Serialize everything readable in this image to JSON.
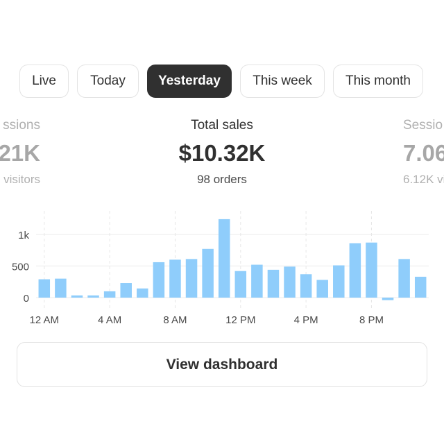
{
  "tabs": [
    {
      "label": "Live",
      "active": false
    },
    {
      "label": "Today",
      "active": false
    },
    {
      "label": "Yesterday",
      "active": true
    },
    {
      "label": "This week",
      "active": false
    },
    {
      "label": "This month",
      "active": false
    }
  ],
  "metrics": {
    "left": {
      "label": "ssions",
      "value": "21K",
      "sub": "visitors"
    },
    "center": {
      "label": "Total sales",
      "value": "$10.32K",
      "sub": "98 orders"
    },
    "right": {
      "label": "Sessio",
      "value": "7.06",
      "sub": "6.12K vi"
    }
  },
  "colors": {
    "bar": "#8fcdfb",
    "bar_negative": "#8fcdfb",
    "active_tab": "#303030"
  },
  "chart_data": {
    "type": "bar",
    "categories": [
      "12 AM",
      "1 AM",
      "2 AM",
      "3 AM",
      "4 AM",
      "5 AM",
      "6 AM",
      "7 AM",
      "8 AM",
      "9 AM",
      "10 AM",
      "11 AM",
      "12 PM",
      "1 PM",
      "2 PM",
      "3 PM",
      "4 PM",
      "5 PM",
      "6 PM",
      "7 PM",
      "8 PM",
      "9 PM",
      "10 PM",
      "11 PM"
    ],
    "values": [
      290,
      300,
      35,
      35,
      100,
      230,
      145,
      560,
      600,
      610,
      770,
      1240,
      420,
      520,
      440,
      490,
      370,
      280,
      510,
      860,
      870,
      -40,
      610,
      330
    ],
    "yticks": [
      0,
      500,
      1000
    ],
    "ytick_labels": [
      "0",
      "500",
      "1k"
    ],
    "xtick_labels": [
      "12 AM",
      "4 AM",
      "8 AM",
      "12 PM",
      "4 PM",
      "8 PM"
    ],
    "ylim": [
      -150,
      1400
    ],
    "grid": true
  },
  "footer": {
    "button_label": "View dashboard"
  }
}
